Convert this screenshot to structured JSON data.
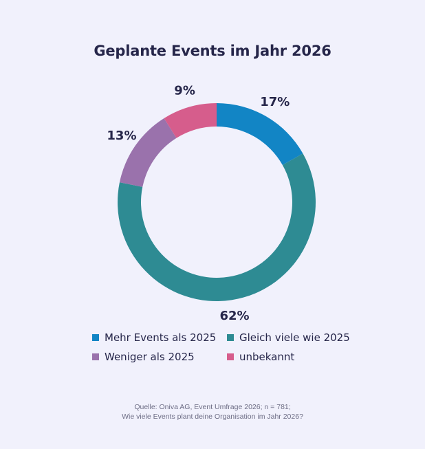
{
  "chart_data": {
    "type": "pie",
    "style": "donut",
    "title": "Geplante Events im Jahr 2026",
    "categories": [
      "Mehr Events als 2025",
      "Gleich viele wie 2025",
      "Weniger als 2025",
      "unbekannt"
    ],
    "values": [
      17,
      62,
      13,
      9
    ],
    "value_labels": [
      "17%",
      "62%",
      "13%",
      "9%"
    ],
    "colors": [
      "#1285c5",
      "#2e8b93",
      "#9a72ac",
      "#d65d8c"
    ],
    "legend_position": "bottom"
  },
  "source": {
    "line1": "Quelle: Oniva AG, Event Umfrage 2026; n = 781;",
    "line2": "Wie viele Events plant deine Organisation im Jahr 2026?"
  }
}
